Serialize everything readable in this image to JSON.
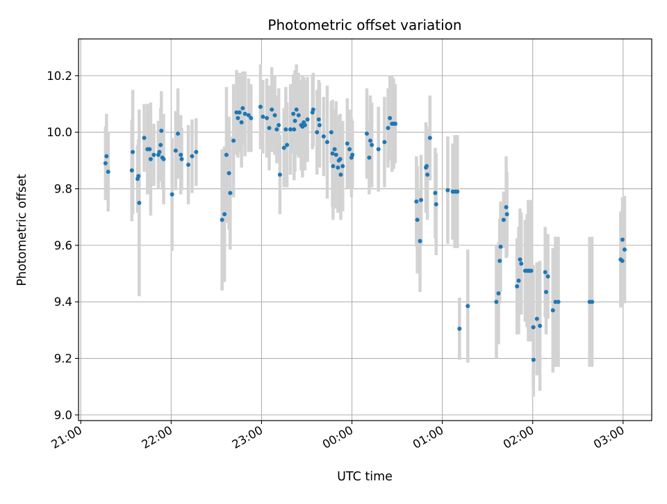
{
  "chart_data": {
    "type": "scatter",
    "title": "Photometric offset variation",
    "xlabel": "UTC time",
    "ylabel": "Photometric offset",
    "x_unit": "minutes after 21:00 UTC",
    "xlim": [
      -1.5,
      379
    ],
    "ylim": [
      8.98,
      10.33
    ],
    "x_ticks": [
      {
        "value": 0,
        "label": "21:00"
      },
      {
        "value": 60,
        "label": "22:00"
      },
      {
        "value": 120,
        "label": "23:00"
      },
      {
        "value": 180,
        "label": "00:00"
      },
      {
        "value": 240,
        "label": "01:00"
      },
      {
        "value": 300,
        "label": "02:00"
      },
      {
        "value": 360,
        "label": "03:00"
      }
    ],
    "y_ticks": [
      9.0,
      9.2,
      9.4,
      9.6,
      9.8,
      10.0,
      10.2
    ],
    "grid": true,
    "marker_color": "#1f77b4",
    "errorbar_color": "#d3d3d3",
    "points": [
      [
        16.4,
        9.89,
        0.13
      ],
      [
        17.1,
        9.915,
        0.15
      ],
      [
        18.2,
        9.86,
        0.14
      ],
      [
        33.9,
        9.865,
        0.18
      ],
      [
        34.5,
        9.93,
        0.22
      ],
      [
        37.7,
        9.835,
        0.12
      ],
      [
        38.3,
        9.845,
        0.13
      ],
      [
        38.8,
        9.75,
        0.33
      ],
      [
        42.1,
        9.98,
        0.12
      ],
      [
        44.3,
        9.94,
        0.16
      ],
      [
        45.7,
        9.94,
        0.13
      ],
      [
        46.4,
        9.905,
        0.2
      ],
      [
        48.5,
        9.92,
        0.11
      ],
      [
        51.5,
        9.92,
        0.12
      ],
      [
        52.2,
        9.93,
        0.09
      ],
      [
        53.0,
        9.955,
        0.13
      ],
      [
        53.5,
        10.005,
        0.14
      ],
      [
        54.2,
        9.91,
        0.11
      ],
      [
        55.0,
        9.905,
        0.16
      ],
      [
        60.6,
        9.78,
        0.2
      ],
      [
        63.0,
        9.935,
        0.14
      ],
      [
        64.5,
        9.995,
        0.16
      ],
      [
        66.4,
        9.92,
        0.14
      ],
      [
        67.0,
        9.905,
        0.11
      ],
      [
        71.4,
        9.885,
        0.14
      ],
      [
        73.9,
        9.915,
        0.13
      ],
      [
        76.6,
        9.93,
        0.12
      ],
      [
        93.8,
        9.69,
        0.25
      ],
      [
        95.4,
        9.71,
        0.24
      ],
      [
        96.7,
        9.92,
        0.24
      ],
      [
        98.4,
        9.855,
        0.2
      ],
      [
        99.2,
        9.785,
        0.2
      ],
      [
        101.4,
        9.97,
        0.2
      ],
      [
        103.4,
        10.07,
        0.15
      ],
      [
        104.3,
        10.05,
        0.14
      ],
      [
        105.4,
        10.07,
        0.14
      ],
      [
        106.7,
        10.035,
        0.16
      ],
      [
        107.5,
        10.085,
        0.13
      ],
      [
        109.0,
        10.065,
        0.15
      ],
      [
        111.4,
        10.06,
        0.13
      ],
      [
        113.0,
        10.05,
        0.12
      ],
      [
        119.3,
        10.09,
        0.15
      ],
      [
        120.9,
        10.055,
        0.13
      ],
      [
        123.5,
        10.05,
        0.14
      ],
      [
        125.1,
        10.015,
        0.15
      ],
      [
        126.8,
        10.08,
        0.15
      ],
      [
        128.8,
        10.06,
        0.14
      ],
      [
        130.1,
        10.01,
        0.12
      ],
      [
        131.4,
        10.025,
        0.13
      ],
      [
        132.2,
        9.85,
        0.14
      ],
      [
        134.9,
        9.945,
        0.14
      ],
      [
        136.1,
        10.01,
        0.15
      ],
      [
        136.9,
        9.955,
        0.15
      ],
      [
        139.2,
        10.01,
        0.16
      ],
      [
        141.1,
        10.065,
        0.14
      ],
      [
        141.6,
        10.01,
        0.18
      ],
      [
        142.2,
        10.04,
        0.18
      ],
      [
        143.2,
        10.08,
        0.16
      ],
      [
        144.6,
        10.06,
        0.15
      ],
      [
        146.3,
        10.025,
        0.16
      ],
      [
        147.2,
        10.02,
        0.18
      ],
      [
        148.0,
        10.035,
        0.16
      ],
      [
        148.8,
        10.025,
        0.16
      ],
      [
        150.5,
        10.045,
        0.15
      ],
      [
        153.8,
        10.07,
        0.13
      ],
      [
        154.3,
        10.08,
        0.13
      ],
      [
        156.8,
        10.0,
        0.15
      ],
      [
        158.0,
        10.045,
        0.14
      ],
      [
        158.5,
        10.025,
        0.15
      ],
      [
        161.2,
        9.985,
        0.14
      ],
      [
        163.6,
        9.965,
        0.2
      ],
      [
        166.3,
        10.0,
        0.11
      ],
      [
        167.1,
        9.925,
        0.19
      ],
      [
        167.5,
        9.88,
        0.19
      ],
      [
        168.5,
        9.94,
        0.14
      ],
      [
        169.5,
        9.92,
        0.19
      ],
      [
        170.7,
        9.875,
        0.16
      ],
      [
        171.3,
        9.9,
        0.16
      ],
      [
        172.2,
        9.905,
        0.16
      ],
      [
        172.6,
        9.85,
        0.16
      ],
      [
        173.9,
        9.88,
        0.16
      ],
      [
        176.9,
        9.96,
        0.16
      ],
      [
        178.4,
        9.94,
        0.14
      ],
      [
        179.7,
        9.91,
        0.14
      ],
      [
        180.3,
        9.92,
        0.12
      ],
      [
        189.9,
        9.995,
        0.16
      ],
      [
        191.5,
        9.91,
        0.13
      ],
      [
        192.2,
        9.97,
        0.16
      ],
      [
        193.2,
        9.955,
        0.15
      ],
      [
        197.6,
        9.94,
        0.15
      ],
      [
        201.6,
        9.965,
        0.16
      ],
      [
        204.0,
        10.015,
        0.14
      ],
      [
        205.2,
        10.05,
        0.15
      ],
      [
        206.6,
        10.03,
        0.17
      ],
      [
        207.7,
        10.03,
        0.16
      ],
      [
        208.8,
        10.03,
        0.14
      ],
      [
        222.8,
        9.755,
        0.16
      ],
      [
        223.4,
        9.69,
        0.19
      ],
      [
        225.2,
        9.615,
        0.18
      ],
      [
        225.9,
        9.76,
        0.16
      ],
      [
        229.1,
        9.875,
        0.16
      ],
      [
        229.6,
        9.88,
        0.14
      ],
      [
        230.1,
        9.85,
        0.16
      ],
      [
        231.8,
        9.98,
        0.15
      ],
      [
        235.3,
        9.785,
        0.16
      ],
      [
        235.9,
        9.745,
        0.18
      ],
      [
        243.6,
        9.795,
        0.19
      ],
      [
        246.9,
        9.79,
        0.17
      ],
      [
        248.3,
        9.79,
        0.2
      ],
      [
        249.2,
        9.79,
        0.17
      ],
      [
        250.0,
        9.79,
        0.2
      ],
      [
        251.4,
        9.305,
        0.11
      ],
      [
        256.9,
        9.385,
        0.2
      ],
      [
        275.9,
        9.4,
        0.2
      ],
      [
        277.3,
        9.43,
        0.18
      ],
      [
        278.1,
        9.545,
        0.15
      ],
      [
        278.7,
        9.595,
        0.16
      ],
      [
        280.7,
        9.69,
        0.1
      ],
      [
        282.4,
        9.735,
        0.18
      ],
      [
        282.9,
        9.71,
        0.15
      ],
      [
        289.6,
        9.455,
        0.17
      ],
      [
        290.7,
        9.475,
        0.19
      ],
      [
        291.6,
        9.55,
        0.18
      ],
      [
        292.4,
        9.535,
        0.18
      ],
      [
        295.0,
        9.51,
        0.18
      ],
      [
        296.2,
        9.51,
        0.2
      ],
      [
        297.1,
        9.51,
        0.25
      ],
      [
        298.0,
        9.51,
        0.25
      ],
      [
        299.0,
        9.51,
        0.25
      ],
      [
        300.4,
        9.31,
        0.22
      ],
      [
        300.5,
        9.195,
        0.13
      ],
      [
        302.8,
        9.34,
        0.2
      ],
      [
        304.8,
        9.315,
        0.23
      ],
      [
        308.3,
        9.505,
        0.16
      ],
      [
        308.9,
        9.435,
        0.15
      ],
      [
        310.1,
        9.49,
        0.15
      ],
      [
        313.4,
        9.37,
        0.22
      ],
      [
        315.1,
        9.4,
        0.23
      ],
      [
        317.0,
        9.4,
        0.23
      ],
      [
        337.8,
        9.4,
        0.23
      ],
      [
        339.4,
        9.4,
        0.23
      ],
      [
        358.4,
        9.55,
        0.17
      ],
      [
        359.5,
        9.545,
        0.16
      ],
      [
        359.6,
        9.62,
        0.15
      ],
      [
        361.0,
        9.585,
        0.19
      ]
    ]
  }
}
